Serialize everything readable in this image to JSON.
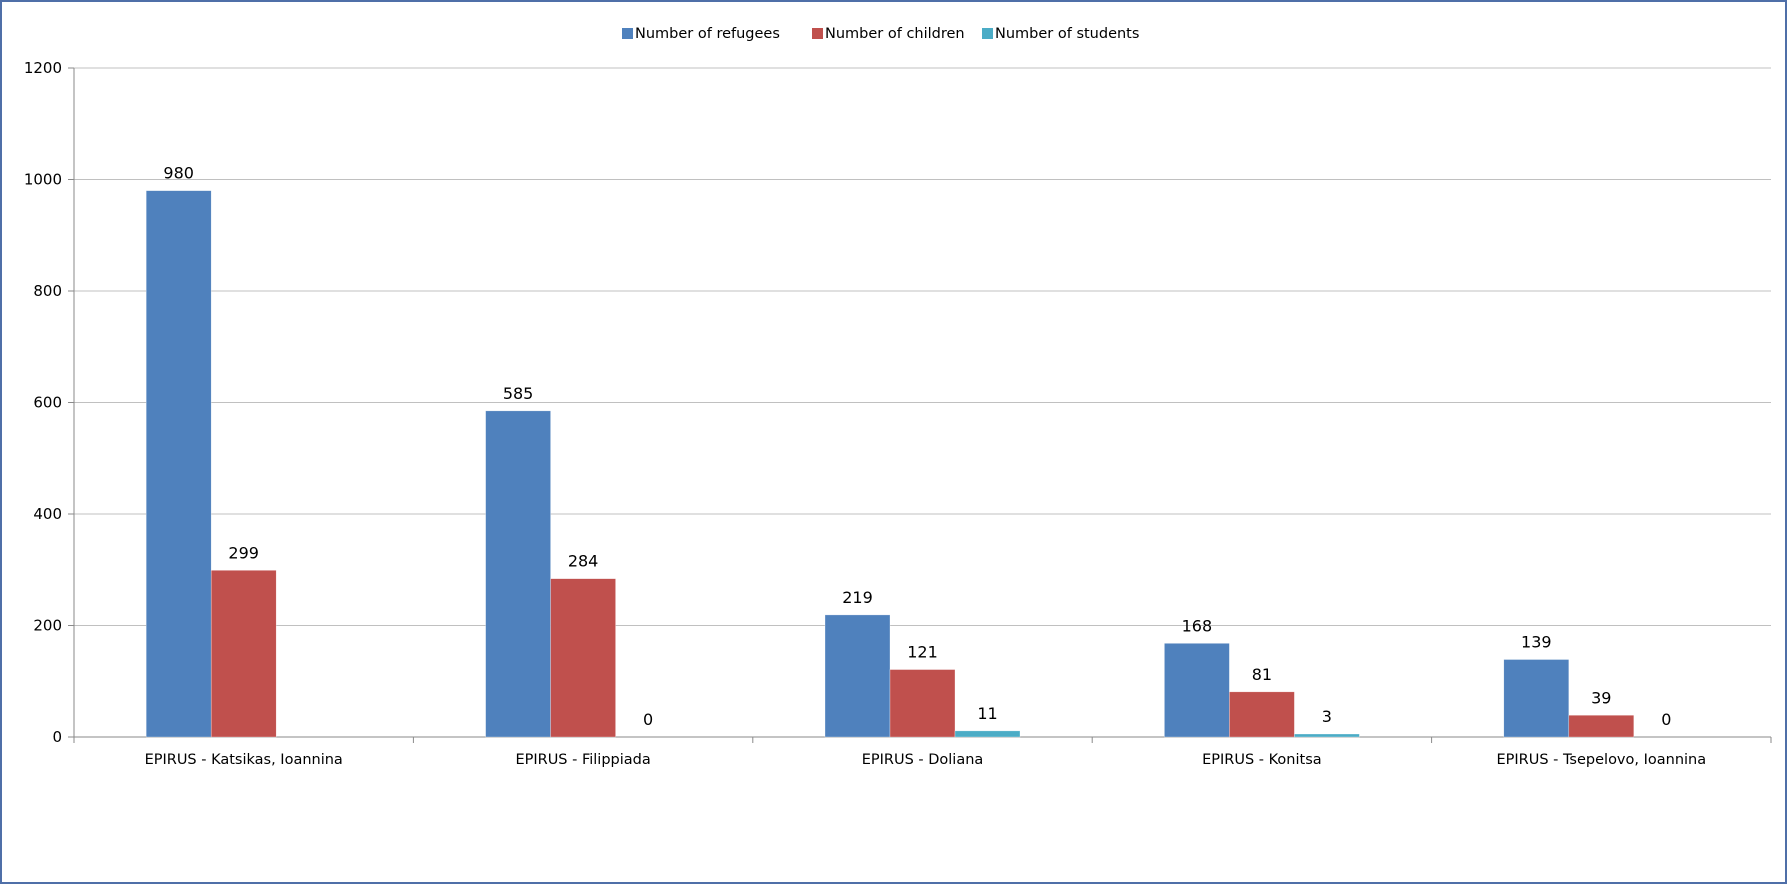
{
  "chart_data": {
    "type": "bar",
    "categories": [
      "EPIRUS - Katsikas, Ioannina",
      "EPIRUS - Filippiada",
      "EPIRUS - Doliana",
      "EPIRUS - Konitsa",
      "EPIRUS - Tsepelovo, Ioannina"
    ],
    "series": [
      {
        "name": "Number of refugees",
        "color": "#4f81bd",
        "values": [
          980,
          585,
          219,
          168,
          139
        ]
      },
      {
        "name": "Number of children",
        "color": "#c0504d",
        "values": [
          299,
          284,
          121,
          81,
          39
        ]
      },
      {
        "name": "Number of students",
        "color": "#4bacc6",
        "values": [
          null,
          0,
          11,
          3,
          0
        ]
      }
    ],
    "ylim": [
      0,
      1200
    ],
    "yticks": [
      0,
      200,
      400,
      600,
      800,
      1000,
      1200
    ],
    "grid": true,
    "legend_position": "top-center",
    "title": "",
    "xlabel": "",
    "ylabel": ""
  }
}
